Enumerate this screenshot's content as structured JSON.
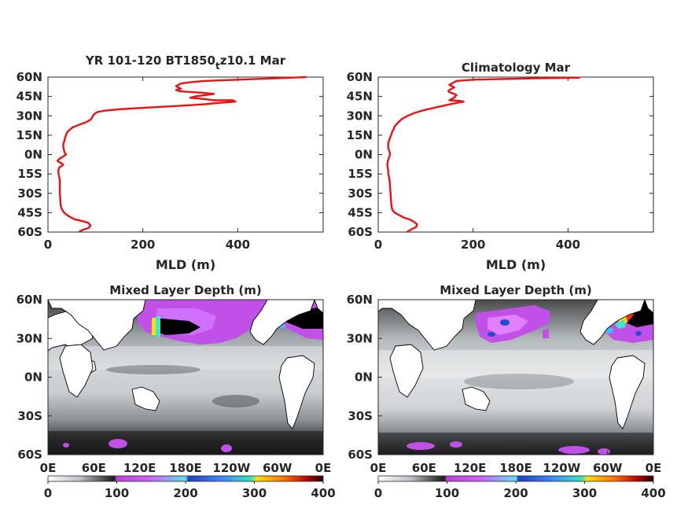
{
  "chart_data": [
    {
      "type": "line",
      "panel": "model-profile",
      "title_main": "YR 101-120 BT1850",
      "title_sub": "t",
      "title_tail": "z10.1 Mar",
      "xlabel": "MLD (m)",
      "ylabel": "",
      "xlim": [
        0,
        580
      ],
      "xticks": [
        0,
        200,
        400
      ],
      "ylim": [
        -60,
        60
      ],
      "yticks": [
        60,
        45,
        30,
        15,
        0,
        -15,
        -30,
        -45,
        -60
      ],
      "ytick_labels": [
        "60N",
        "45N",
        "30N",
        "15N",
        "0N",
        "15S",
        "30S",
        "45S",
        "60S"
      ],
      "series": [
        {
          "color": "#ee1111",
          "points": [
            [
              545,
              60
            ],
            [
              480,
              59
            ],
            [
              400,
              58
            ],
            [
              330,
              57
            ],
            [
              300,
              56
            ],
            [
              280,
              55
            ],
            [
              270,
              53
            ],
            [
              275,
              52
            ],
            [
              280,
              51
            ],
            [
              270,
              50
            ],
            [
              278,
              49
            ],
            [
              320,
              48
            ],
            [
              350,
              47
            ],
            [
              330,
              46
            ],
            [
              310,
              45
            ],
            [
              300,
              44
            ],
            [
              330,
              43
            ],
            [
              350,
              42
            ],
            [
              390,
              42
            ],
            [
              395,
              41
            ],
            [
              360,
              40
            ],
            [
              330,
              39
            ],
            [
              290,
              38
            ],
            [
              240,
              37
            ],
            [
              190,
              36
            ],
            [
              150,
              35
            ],
            [
              120,
              34
            ],
            [
              105,
              33
            ],
            [
              100,
              32
            ],
            [
              97,
              31
            ],
            [
              95,
              30
            ],
            [
              92,
              28
            ],
            [
              90,
              27
            ],
            [
              80,
              25
            ],
            [
              65,
              23
            ],
            [
              52,
              21
            ],
            [
              45,
              19
            ],
            [
              40,
              17
            ],
            [
              38,
              15
            ],
            [
              36,
              13
            ],
            [
              35,
              11
            ],
            [
              33,
              9
            ],
            [
              32,
              7
            ],
            [
              33,
              5
            ],
            [
              34,
              3
            ],
            [
              36,
              1
            ],
            [
              38,
              0
            ],
            [
              34,
              -1
            ],
            [
              30,
              -2
            ],
            [
              25,
              -3
            ],
            [
              22,
              -4
            ],
            [
              20,
              -5
            ],
            [
              24,
              -6
            ],
            [
              30,
              -7
            ],
            [
              32,
              -8
            ],
            [
              28,
              -9
            ],
            [
              24,
              -10
            ],
            [
              22,
              -12
            ],
            [
              22,
              -14
            ],
            [
              23,
              -16
            ],
            [
              24,
              -18
            ],
            [
              25,
              -20
            ],
            [
              25,
              -25
            ],
            [
              25,
              -30
            ],
            [
              26,
              -35
            ],
            [
              27,
              -40
            ],
            [
              29,
              -42
            ],
            [
              32,
              -44
            ],
            [
              37,
              -46
            ],
            [
              45,
              -48
            ],
            [
              55,
              -50
            ],
            [
              66,
              -51
            ],
            [
              78,
              -52
            ],
            [
              85,
              -53
            ],
            [
              90,
              -55
            ],
            [
              85,
              -57
            ],
            [
              75,
              -58
            ],
            [
              65,
              -60
            ]
          ]
        }
      ]
    },
    {
      "type": "line",
      "panel": "climatology-profile",
      "title": "Climatology Mar",
      "xlabel": "MLD (m)",
      "ylabel": "",
      "xlim": [
        0,
        580
      ],
      "xticks": [
        0,
        200,
        400
      ],
      "ylim": [
        -60,
        60
      ],
      "yticks": [
        60,
        45,
        30,
        15,
        0,
        -15,
        -30,
        -45,
        -60
      ],
      "ytick_labels": [
        "60N",
        "45N",
        "30N",
        "15N",
        "0N",
        "15S",
        "30S",
        "45S",
        "60S"
      ],
      "series": [
        {
          "color": "#ee1111",
          "points": [
            [
              425,
              59.5
            ],
            [
              330,
              59
            ],
            [
              260,
              58.5
            ],
            [
              200,
              58
            ],
            [
              165,
              57
            ],
            [
              155,
              55
            ],
            [
              150,
              54
            ],
            [
              155,
              53
            ],
            [
              160,
              52
            ],
            [
              155,
              51
            ],
            [
              150,
              50
            ],
            [
              148,
              49
            ],
            [
              152,
              48
            ],
            [
              160,
              47
            ],
            [
              165,
              46
            ],
            [
              162,
              45
            ],
            [
              160,
              44
            ],
            [
              155,
              43
            ],
            [
              150,
              42
            ],
            [
              175,
              41.5
            ],
            [
              180,
              41
            ],
            [
              165,
              40
            ],
            [
              140,
              38
            ],
            [
              115,
              36
            ],
            [
              92,
              34
            ],
            [
              75,
              32
            ],
            [
              62,
              30
            ],
            [
              52,
              28
            ],
            [
              45,
              26
            ],
            [
              40,
              24
            ],
            [
              35,
              22
            ],
            [
              33,
              20
            ],
            [
              30,
              18
            ],
            [
              28,
              16
            ],
            [
              26,
              14
            ],
            [
              24,
              12
            ],
            [
              22,
              10
            ],
            [
              21,
              8
            ],
            [
              21,
              6
            ],
            [
              22,
              4
            ],
            [
              24,
              2
            ],
            [
              25,
              0
            ],
            [
              23,
              -2
            ],
            [
              21,
              -4
            ],
            [
              20,
              -6
            ],
            [
              19,
              -8
            ],
            [
              20,
              -10
            ],
            [
              21,
              -12
            ],
            [
              21,
              -14
            ],
            [
              22,
              -16
            ],
            [
              23,
              -18
            ],
            [
              24,
              -20
            ],
            [
              25,
              -25
            ],
            [
              26,
              -30
            ],
            [
              27,
              -35
            ],
            [
              28,
              -40
            ],
            [
              30,
              -43
            ],
            [
              35,
              -45
            ],
            [
              45,
              -47
            ],
            [
              55,
              -49
            ],
            [
              65,
              -50
            ],
            [
              75,
              -52
            ],
            [
              82,
              -54
            ],
            [
              80,
              -56
            ],
            [
              70,
              -58
            ],
            [
              60,
              -60
            ]
          ]
        }
      ]
    },
    {
      "type": "heatmap",
      "panel": "model-map",
      "title": "Mixed Layer Depth (m)",
      "xticks_labels": [
        "0E",
        "60E",
        "120E",
        "180E",
        "120W",
        "60W",
        "0E"
      ],
      "ytick_labels": [
        "60N",
        "30N",
        "0N",
        "30S",
        "60S"
      ],
      "colorbar": {
        "min": 0,
        "max": 400,
        "ticks": [
          0,
          100,
          200,
          300,
          400
        ]
      }
    },
    {
      "type": "heatmap",
      "panel": "climatology-map",
      "title": "Mixed Layer Depth (m)",
      "xticks_labels": [
        "0E",
        "60E",
        "120E",
        "180E",
        "120W",
        "60W",
        "0E"
      ],
      "ytick_labels": [
        "60N",
        "30N",
        "0N",
        "30S",
        "60S"
      ],
      "colorbar": {
        "min": 0,
        "max": 400,
        "ticks": [
          0,
          100,
          200,
          300,
          400
        ]
      }
    }
  ]
}
